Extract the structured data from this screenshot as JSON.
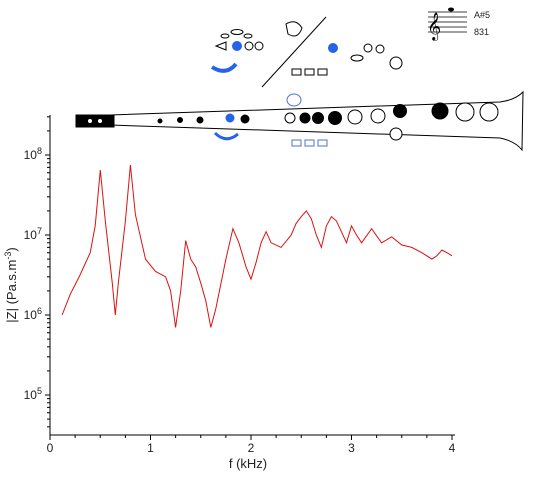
{
  "note_panel": {
    "note": "A#5",
    "frequency": "831"
  },
  "chart_data": {
    "type": "line",
    "title": "",
    "xlabel": "f (kHz)",
    "ylabel_main": "|Z| (Pa.s.m",
    "ylabel_sup": "-3",
    "ylabel_tail": ")",
    "xlim": [
      0,
      4
    ],
    "ylim_log10": [
      4.5,
      8.5
    ],
    "y_scale": "log",
    "grid": false,
    "x_ticks": [
      "0",
      "1",
      "2",
      "3",
      "4"
    ],
    "y_tick_exponents": [
      "8",
      "7",
      "6",
      "5"
    ],
    "series": [
      {
        "color": "#dd1111",
        "x": [
          0.12,
          0.2,
          0.3,
          0.4,
          0.45,
          0.5,
          0.55,
          0.62,
          0.65,
          0.68,
          0.75,
          0.8,
          0.85,
          0.95,
          1.05,
          1.15,
          1.2,
          1.25,
          1.3,
          1.35,
          1.4,
          1.45,
          1.5,
          1.55,
          1.6,
          1.65,
          1.75,
          1.82,
          1.88,
          1.95,
          2.0,
          2.05,
          2.1,
          2.15,
          2.2,
          2.3,
          2.4,
          2.45,
          2.5,
          2.55,
          2.6,
          2.65,
          2.7,
          2.75,
          2.8,
          2.85,
          2.9,
          2.95,
          3.0,
          3.05,
          3.1,
          3.2,
          3.3,
          3.4,
          3.5,
          3.6,
          3.7,
          3.8,
          3.85,
          3.9,
          3.95,
          4.0
        ],
        "y": [
          1000000.0,
          1800000.0,
          3200000.0,
          6000000.0,
          13000000.0,
          65000000.0,
          15000000.0,
          2500000.0,
          1000000.0,
          2500000.0,
          15000000.0,
          75000000.0,
          18000000.0,
          5000000.0,
          3500000.0,
          3000000.0,
          2000000.0,
          700000.0,
          2000000.0,
          8500000.0,
          5000000.0,
          4000000.0,
          2500000.0,
          1500000.0,
          700000.0,
          1200000.0,
          5000000.0,
          12000000.0,
          8000000.0,
          4000000.0,
          2800000.0,
          4500000.0,
          8000000.0,
          11000000.0,
          8000000.0,
          7000000.0,
          10000000.0,
          14000000.0,
          17000000.0,
          20000000.0,
          16000000.0,
          10000000.0,
          7000000.0,
          13000000.0,
          17000000.0,
          15000000.0,
          11000000.0,
          8000000.0,
          13000000.0,
          10000000.0,
          8000000.0,
          12000000.0,
          8000000.0,
          9500000.0,
          7500000.0,
          7000000.0,
          6000000.0,
          5000000.0,
          5500000.0,
          6500000.0,
          6000000.0,
          5500000.0
        ]
      }
    ]
  }
}
